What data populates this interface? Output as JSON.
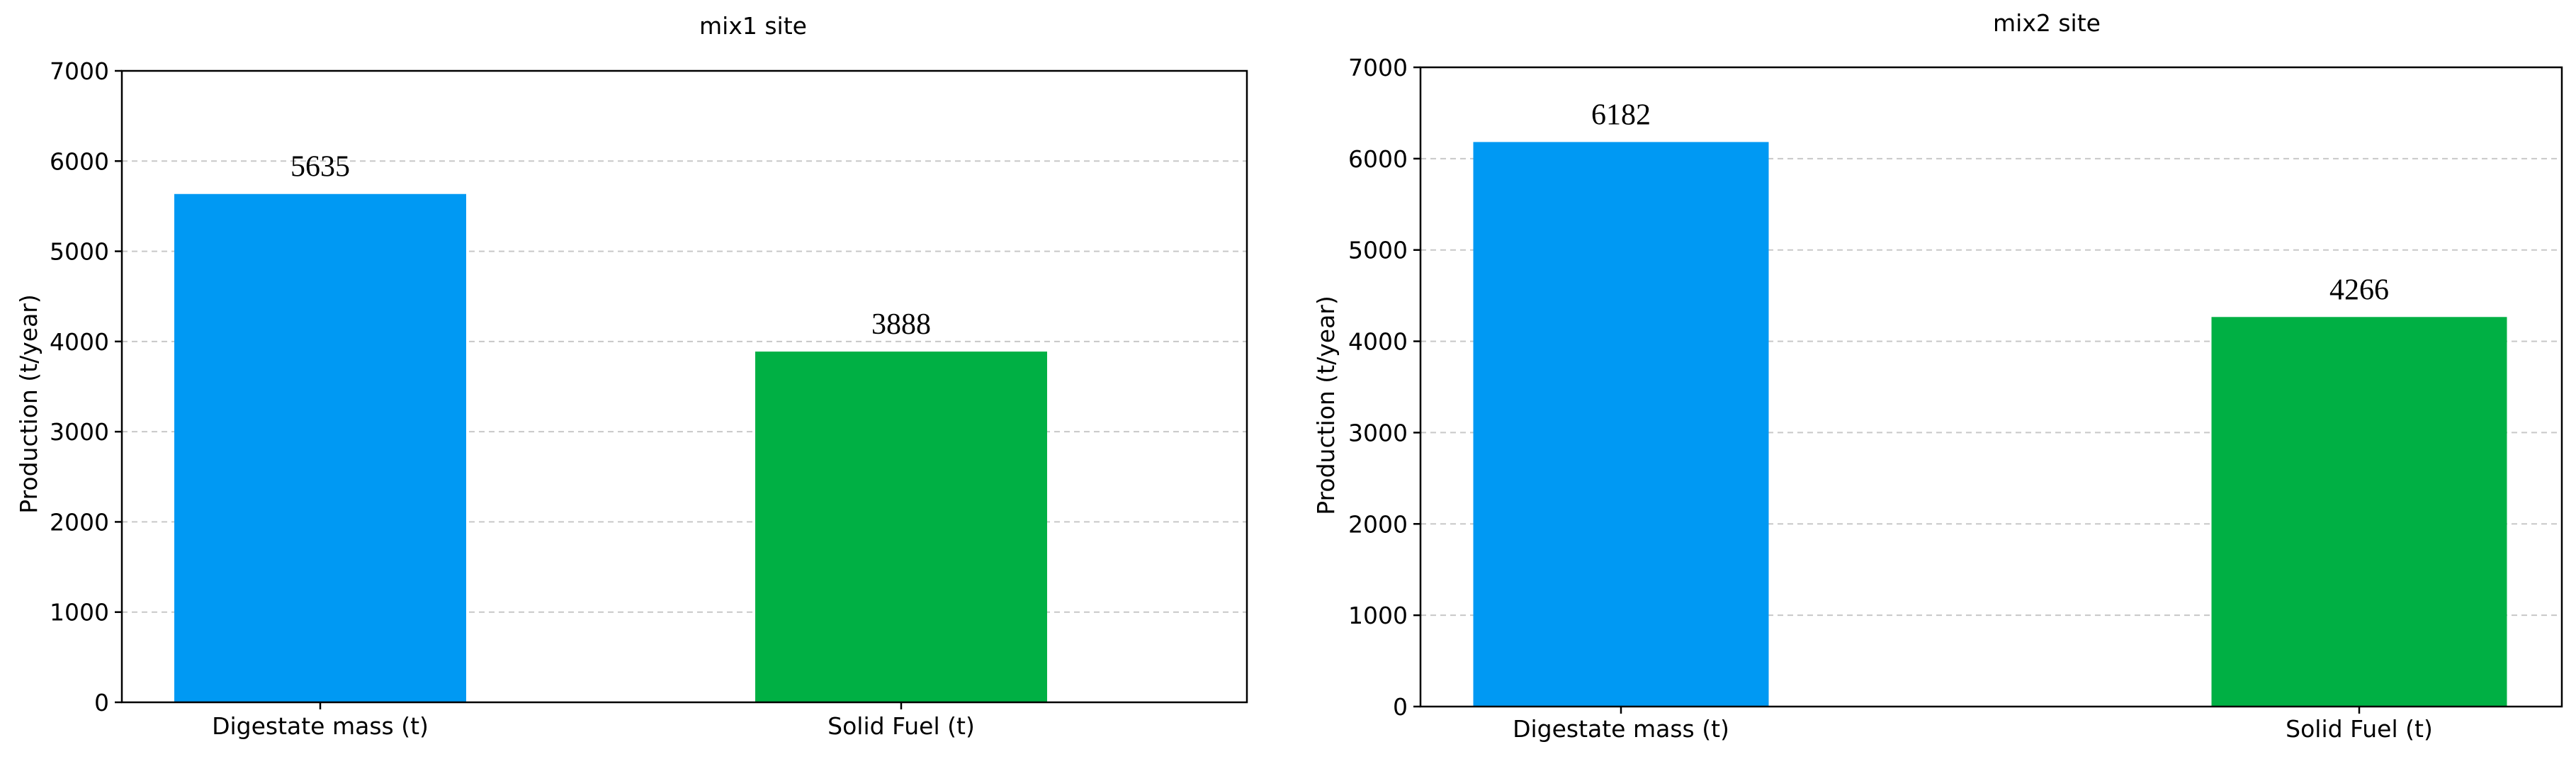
{
  "chart_data": [
    {
      "type": "bar",
      "title": "mix1 site",
      "xlabel": "",
      "ylabel": "Production (t/year)",
      "categories": [
        "Digestate mass (t)",
        "Solid Fuel (t)"
      ],
      "values": [
        5635,
        3888
      ],
      "data_labels": [
        "5635",
        "3888"
      ],
      "colors": [
        "#0099f3",
        "#00b044"
      ],
      "ylim": [
        0,
        7000
      ],
      "yticks": [
        0,
        1000,
        2000,
        3000,
        4000,
        5000,
        6000,
        7000
      ],
      "grid": true,
      "legend": "none"
    },
    {
      "type": "bar",
      "title": "mix2 site",
      "xlabel": "",
      "ylabel": "Production (t/year)",
      "categories": [
        "Digestate mass (t)",
        "Solid Fuel (t)"
      ],
      "values": [
        6182,
        4266
      ],
      "data_labels": [
        "6182",
        "4266"
      ],
      "colors": [
        "#0099f3",
        "#00b044"
      ],
      "ylim": [
        0,
        7000
      ],
      "yticks": [
        0,
        1000,
        2000,
        3000,
        4000,
        5000,
        6000,
        7000
      ],
      "grid": true,
      "legend": "none"
    }
  ]
}
